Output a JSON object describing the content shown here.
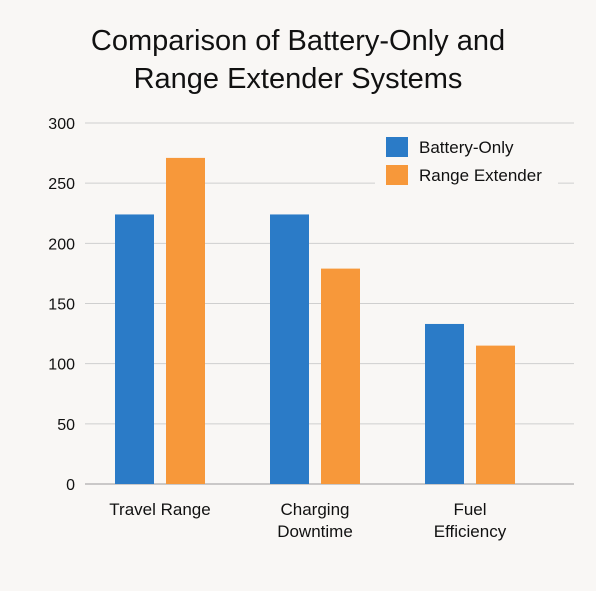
{
  "chart_data": {
    "type": "bar",
    "title_lines": [
      "Comparison of Battery-Only and",
      "Range Extender Systems"
    ],
    "categories": [
      [
        "Travel Range"
      ],
      [
        "Charging",
        "Downtime"
      ],
      [
        "Fuel",
        "Efficiency"
      ]
    ],
    "series": [
      {
        "name": "Battery-Only",
        "color": "#2b7bc7",
        "values": [
          224,
          224,
          133
        ]
      },
      {
        "name": "Range Extender",
        "color": "#f7983a",
        "values": [
          271,
          179,
          115
        ]
      }
    ],
    "ylim": [
      0,
      300
    ],
    "yticks": [
      0,
      50,
      100,
      150,
      200,
      250,
      300
    ],
    "grid": true,
    "legend": "top-right"
  }
}
